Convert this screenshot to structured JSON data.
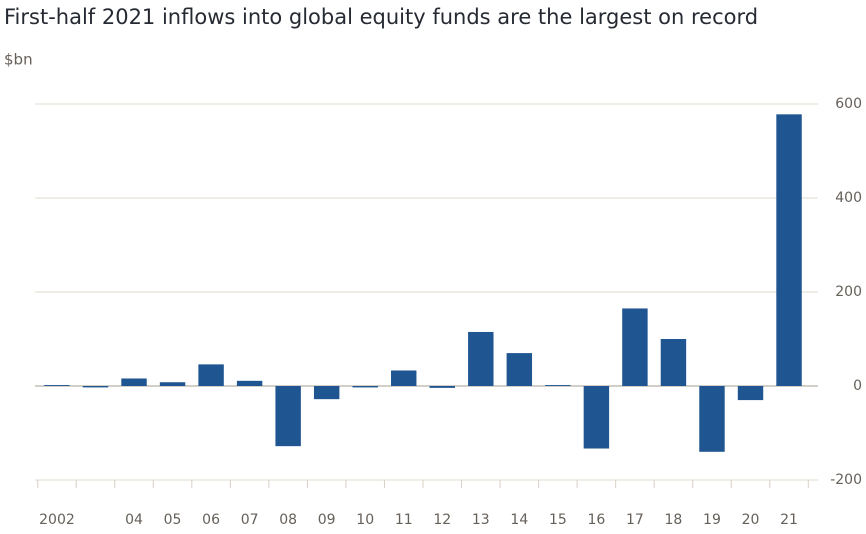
{
  "chart_data": {
    "type": "bar",
    "title": "First-half 2021 inflows into global equity funds are the largest on record",
    "subtitle": "$bn",
    "categories": [
      "2002",
      null,
      "04",
      "05",
      "06",
      "07",
      "08",
      "09",
      "10",
      "11",
      "12",
      "13",
      "14",
      "15",
      "16",
      "17",
      "18",
      "19",
      "20",
      "21"
    ],
    "values": [
      2,
      -3,
      16,
      8,
      46,
      11,
      -128,
      -28,
      -3,
      33,
      -4,
      115,
      70,
      2,
      -133,
      165,
      100,
      -140,
      -30,
      578
    ],
    "color": "#1f5591",
    "ylim": [
      -200,
      600
    ],
    "yticks": [
      -200,
      0,
      200,
      400,
      600
    ],
    "grid": true
  }
}
